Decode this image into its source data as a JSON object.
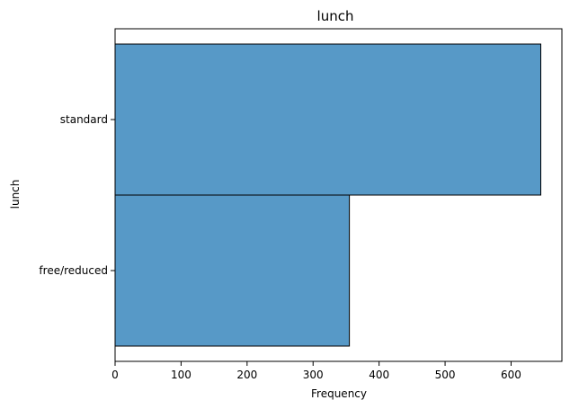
{
  "chart_data": {
    "type": "bar",
    "orientation": "horizontal",
    "title": "lunch",
    "xlabel": "Frequency",
    "ylabel": "lunch",
    "categories": [
      "standard",
      "free/reduced"
    ],
    "values": [
      645,
      355
    ],
    "xlim": [
      0,
      677
    ],
    "xticks": [
      0,
      100,
      200,
      300,
      400,
      500,
      600
    ],
    "grid": false,
    "legend": "none",
    "bar_color": "#5799c7",
    "edge_color": "#000000"
  }
}
